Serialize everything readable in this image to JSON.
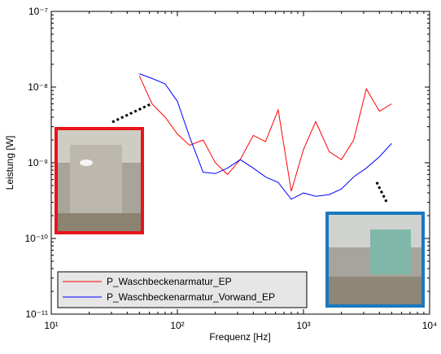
{
  "chart_data": {
    "type": "line",
    "xlabel": "Frequenz [Hz]",
    "ylabel": "Leistung [W]",
    "xscale": "log",
    "yscale": "log",
    "xlim": [
      10,
      10000
    ],
    "ylim": [
      1e-11,
      1e-07
    ],
    "xticks": [
      {
        "value": 10,
        "label": "10¹"
      },
      {
        "value": 100,
        "label": "10²"
      },
      {
        "value": 1000,
        "label": "10³"
      },
      {
        "value": 10000,
        "label": "10⁴"
      }
    ],
    "yticks": [
      {
        "value": 1e-11,
        "label": "10⁻¹¹"
      },
      {
        "value": 1e-10,
        "label": "10⁻¹⁰"
      },
      {
        "value": 1e-09,
        "label": "10⁻⁹"
      },
      {
        "value": 1e-08,
        "label": "10⁻⁸"
      },
      {
        "value": 1e-07,
        "label": "10⁻⁷"
      }
    ],
    "legend": "lower left",
    "x": [
      50,
      63,
      80,
      100,
      125,
      160,
      200,
      250,
      315,
      400,
      500,
      630,
      800,
      1000,
      1250,
      1600,
      2000,
      2500,
      3150,
      4000,
      5000
    ],
    "series": [
      {
        "name": "P_Waschbeckenarmatur_EP",
        "color": "#ff0000",
        "values": [
          1.4e-08,
          6e-09,
          4e-09,
          2.4e-09,
          1.7e-09,
          2e-09,
          1e-09,
          7e-10,
          1.1e-09,
          2.3e-09,
          1.9e-09,
          5e-09,
          4.2e-10,
          1.5e-09,
          3.5e-09,
          1.4e-09,
          1.1e-09,
          2e-09,
          9.5e-09,
          4.8e-09,
          6e-09
        ]
      },
      {
        "name": "P_Waschbeckenarmatur_Vorwand_EP",
        "color": "#0000ff",
        "values": [
          1.5e-08,
          1.3e-08,
          1.1e-08,
          6.5e-09,
          2.2e-09,
          7.5e-10,
          7.2e-10,
          8.5e-10,
          1.1e-09,
          8.5e-10,
          6.5e-10,
          5.5e-10,
          3.3e-10,
          4e-10,
          3.6e-10,
          3.8e-10,
          4.5e-10,
          6.5e-10,
          8.5e-10,
          1.2e-09,
          1.8e-09
        ]
      }
    ]
  }
}
